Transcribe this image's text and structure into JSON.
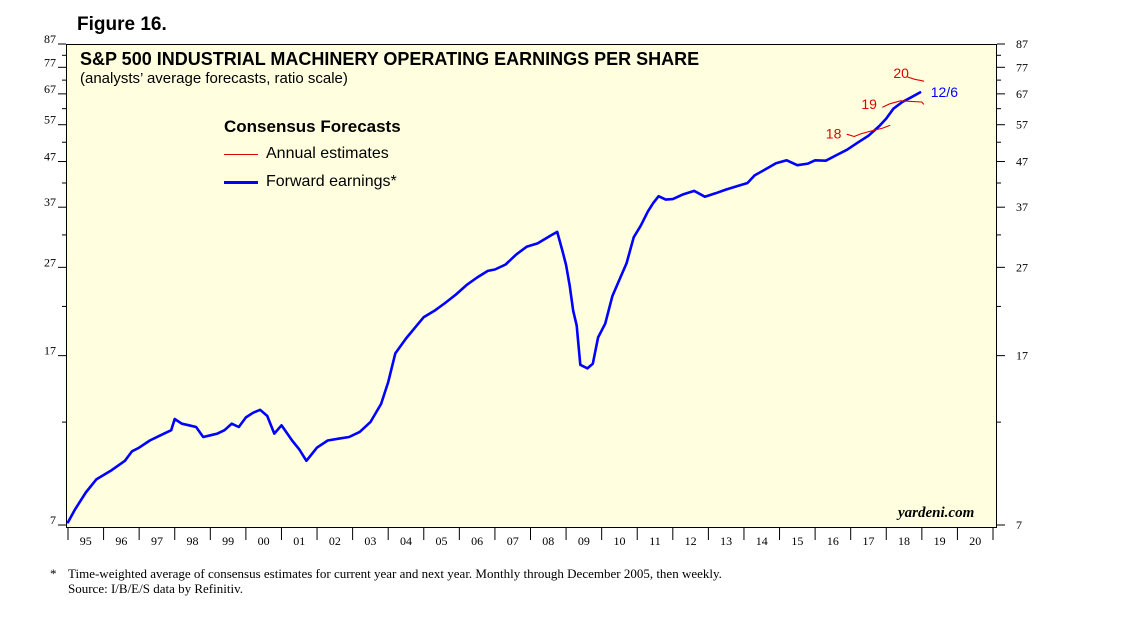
{
  "figure_label": "Figure 16.",
  "footnote": {
    "marker": "*",
    "line1": "Time-weighted average of consensus estimates for current year and next year. Monthly through December 2005, then weekly.",
    "line2": "Source: I/B/E/S data by Refinitiv."
  },
  "watermark": "yardeni.com",
  "chart_data": {
    "type": "line",
    "title": "S&P 500 INDUSTRIAL MACHINERY OPERATING EARNINGS PER SHARE",
    "subtitle": "(analysts’ average forecasts, ratio scale)",
    "scale": "log",
    "ylim": [
      7,
      87
    ],
    "y_ticks": [
      7,
      17,
      27,
      37,
      47,
      57,
      67,
      77,
      87
    ],
    "x_categories": [
      "95",
      "96",
      "97",
      "98",
      "99",
      "00",
      "01",
      "02",
      "03",
      "04",
      "05",
      "06",
      "07",
      "08",
      "09",
      "10",
      "11",
      "12",
      "13",
      "14",
      "15",
      "16",
      "17",
      "18",
      "19",
      "20"
    ],
    "xlim": [
      1995,
      2021
    ],
    "grid": false,
    "legend": {
      "title": "Consensus Forecasts",
      "placement": "top-left",
      "items": [
        {
          "label": "Annual estimates",
          "color": "#e00000"
        },
        {
          "label": "Forward earnings*",
          "color": "#0000ff"
        }
      ]
    },
    "series": [
      {
        "name": "Forward earnings*",
        "color": "#0000ff",
        "points": [
          [
            1995.0,
            7.1
          ],
          [
            1995.2,
            7.6
          ],
          [
            1995.5,
            8.3
          ],
          [
            1995.8,
            8.9
          ],
          [
            1996.2,
            9.3
          ],
          [
            1996.6,
            9.8
          ],
          [
            1996.8,
            10.3
          ],
          [
            1997.0,
            10.5
          ],
          [
            1997.3,
            10.9
          ],
          [
            1997.6,
            11.2
          ],
          [
            1997.9,
            11.5
          ],
          [
            1998.0,
            12.2
          ],
          [
            1998.2,
            11.9
          ],
          [
            1998.4,
            11.8
          ],
          [
            1998.6,
            11.7
          ],
          [
            1998.8,
            11.1
          ],
          [
            1999.0,
            11.2
          ],
          [
            1999.2,
            11.3
          ],
          [
            1999.4,
            11.5
          ],
          [
            1999.6,
            11.9
          ],
          [
            1999.8,
            11.7
          ],
          [
            2000.0,
            12.3
          ],
          [
            2000.2,
            12.6
          ],
          [
            2000.4,
            12.8
          ],
          [
            2000.6,
            12.4
          ],
          [
            2000.8,
            11.3
          ],
          [
            2001.0,
            11.8
          ],
          [
            2001.3,
            10.9
          ],
          [
            2001.5,
            10.4
          ],
          [
            2001.7,
            9.8
          ],
          [
            2002.0,
            10.5
          ],
          [
            2002.3,
            10.9
          ],
          [
            2002.6,
            11.0
          ],
          [
            2002.9,
            11.1
          ],
          [
            2003.2,
            11.4
          ],
          [
            2003.5,
            12.0
          ],
          [
            2003.8,
            13.2
          ],
          [
            2004.0,
            14.8
          ],
          [
            2004.2,
            17.2
          ],
          [
            2004.5,
            18.6
          ],
          [
            2004.8,
            19.9
          ],
          [
            2005.0,
            20.8
          ],
          [
            2005.3,
            21.5
          ],
          [
            2005.6,
            22.4
          ],
          [
            2005.9,
            23.4
          ],
          [
            2006.2,
            24.6
          ],
          [
            2006.5,
            25.6
          ],
          [
            2006.8,
            26.5
          ],
          [
            2007.0,
            26.7
          ],
          [
            2007.3,
            27.4
          ],
          [
            2007.6,
            28.9
          ],
          [
            2007.9,
            30.1
          ],
          [
            2008.2,
            30.6
          ],
          [
            2008.4,
            31.3
          ],
          [
            2008.6,
            32.0
          ],
          [
            2008.75,
            32.5
          ],
          [
            2008.9,
            29.4
          ],
          [
            2009.0,
            27.3
          ],
          [
            2009.1,
            24.6
          ],
          [
            2009.2,
            21.5
          ],
          [
            2009.3,
            19.9
          ],
          [
            2009.4,
            16.2
          ],
          [
            2009.6,
            15.9
          ],
          [
            2009.75,
            16.3
          ],
          [
            2009.9,
            18.7
          ],
          [
            2010.1,
            20.1
          ],
          [
            2010.3,
            23.2
          ],
          [
            2010.5,
            25.3
          ],
          [
            2010.7,
            27.6
          ],
          [
            2010.9,
            31.6
          ],
          [
            2011.1,
            33.6
          ],
          [
            2011.3,
            36.2
          ],
          [
            2011.45,
            37.8
          ],
          [
            2011.6,
            39.2
          ],
          [
            2011.8,
            38.5
          ],
          [
            2012.0,
            38.6
          ],
          [
            2012.3,
            39.6
          ],
          [
            2012.6,
            40.3
          ],
          [
            2012.9,
            39.1
          ],
          [
            2013.2,
            39.8
          ],
          [
            2013.5,
            40.6
          ],
          [
            2013.8,
            41.3
          ],
          [
            2014.1,
            42.0
          ],
          [
            2014.3,
            43.7
          ],
          [
            2014.6,
            45.1
          ],
          [
            2014.9,
            46.6
          ],
          [
            2015.2,
            47.3
          ],
          [
            2015.5,
            46.1
          ],
          [
            2015.8,
            46.5
          ],
          [
            2016.0,
            47.3
          ],
          [
            2016.3,
            47.2
          ],
          [
            2016.6,
            48.6
          ],
          [
            2016.9,
            50.0
          ],
          [
            2017.2,
            51.9
          ],
          [
            2017.5,
            53.8
          ],
          [
            2017.8,
            56.6
          ],
          [
            2018.0,
            58.9
          ],
          [
            2018.2,
            62.0
          ],
          [
            2018.45,
            64.2
          ],
          [
            2018.7,
            65.8
          ],
          [
            2018.95,
            67.5
          ]
        ]
      },
      {
        "name": "18",
        "color": "#e00000",
        "points": [
          [
            2016.9,
            54.2
          ],
          [
            2017.1,
            53.6
          ],
          [
            2017.3,
            54.4
          ],
          [
            2017.6,
            55.2
          ],
          [
            2017.9,
            56.0
          ],
          [
            2018.1,
            56.8
          ]
        ]
      },
      {
        "name": "19",
        "color": "#e00000",
        "points": [
          [
            2017.9,
            62.5
          ],
          [
            2018.1,
            63.6
          ],
          [
            2018.4,
            64.6
          ],
          [
            2018.7,
            64.4
          ],
          [
            2019.0,
            64.2
          ],
          [
            2019.05,
            63.5
          ]
        ]
      },
      {
        "name": "20",
        "color": "#e00000",
        "points": [
          [
            2018.6,
            73.2
          ],
          [
            2018.8,
            72.3
          ],
          [
            2019.0,
            71.8
          ],
          [
            2019.05,
            71.6
          ]
        ]
      }
    ],
    "annotations": [
      {
        "text": "18",
        "color": "#e00000",
        "x": 2016.3,
        "y": 54.5
      },
      {
        "text": "19",
        "color": "#e00000",
        "x": 2017.3,
        "y": 63.5
      },
      {
        "text": "20",
        "color": "#e00000",
        "x": 2018.2,
        "y": 74.8
      },
      {
        "text": "12/6",
        "color": "#0000ff",
        "x": 2019.25,
        "y": 67.6
      }
    ]
  }
}
